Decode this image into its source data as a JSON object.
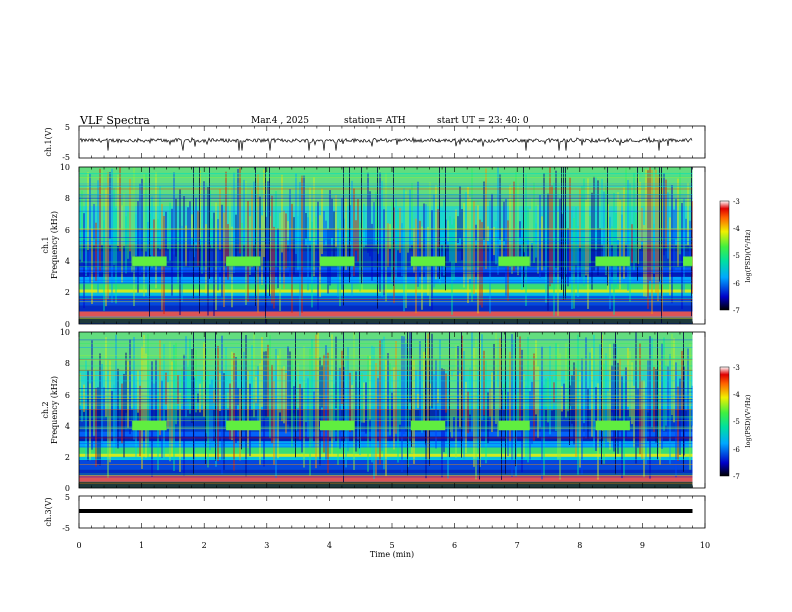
{
  "header": {
    "title": "VLF  Spectra",
    "date": "Mar.4  , 2025",
    "station": "station= ATH",
    "start_ut": "start  UT  =    23: 40: 0"
  },
  "chart_data": [
    {
      "type": "line",
      "panel": "ch1-waveform",
      "ylabel": "ch.1(V)",
      "yticks": [
        "5",
        "-5"
      ],
      "ylim": [
        -5,
        5
      ],
      "xlim": [
        0,
        10
      ],
      "data_end_min": 9.8,
      "series": [
        {
          "values_range": [
            -1.5,
            1.5
          ],
          "baseline": 0.5
        }
      ]
    },
    {
      "type": "heatmap",
      "panel": "ch1-spectrogram",
      "ylabel": "ch.1\nFrequency  (kHz)",
      "yticks": [
        "0",
        "2",
        "4",
        "6",
        "8",
        "10"
      ],
      "ylim": [
        0,
        10
      ],
      "xlim": [
        0,
        10
      ],
      "data_end_min": 9.8,
      "colorbar": {
        "label": "log(PSD)(V²/Hz)",
        "ticks": [
          "-3",
          "-4",
          "-5",
          "-6",
          "-7"
        ],
        "range": [
          -7,
          -3
        ]
      },
      "transmitter_bursts_min": [
        [
          0.85,
          1.4
        ],
        [
          2.35,
          2.9
        ],
        [
          3.85,
          4.4
        ],
        [
          5.3,
          5.85
        ],
        [
          6.7,
          7.2
        ],
        [
          8.25,
          8.8
        ],
        [
          9.65,
          9.8
        ]
      ],
      "burst_freq_khz": [
        3.7,
        4.3
      ]
    },
    {
      "type": "heatmap",
      "panel": "ch2-spectrogram",
      "ylabel": "ch.2\nFrequency  (kHz)",
      "yticks": [
        "0",
        "2",
        "4",
        "6",
        "8",
        "10"
      ],
      "ylim": [
        0,
        10
      ],
      "xlim": [
        0,
        10
      ],
      "data_end_min": 9.8,
      "colorbar": {
        "label": "log(PSD)(V²/Hz)",
        "ticks": [
          "-3",
          "-4",
          "-5",
          "-6",
          "-7"
        ],
        "range": [
          -7,
          -3
        ]
      },
      "transmitter_bursts_min": [
        [
          0.85,
          1.4
        ],
        [
          2.35,
          2.9
        ],
        [
          3.85,
          4.4
        ],
        [
          5.3,
          5.85
        ],
        [
          6.7,
          7.2
        ],
        [
          8.25,
          8.8
        ]
      ],
      "burst_freq_khz": [
        3.7,
        4.3
      ]
    },
    {
      "type": "line",
      "panel": "ch3-waveform",
      "ylabel": "ch.3(V)",
      "yticks": [
        "5",
        "-5"
      ],
      "ylim": [
        -5,
        5
      ],
      "xlim": [
        0,
        10
      ],
      "xlabel": "Time  (min)",
      "xticks": [
        "0",
        "1",
        "2",
        "3",
        "4",
        "5",
        "6",
        "7",
        "8",
        "9",
        "10"
      ],
      "data_end_min": 9.8,
      "series": [
        {
          "constant_value": 0.0
        }
      ]
    }
  ]
}
